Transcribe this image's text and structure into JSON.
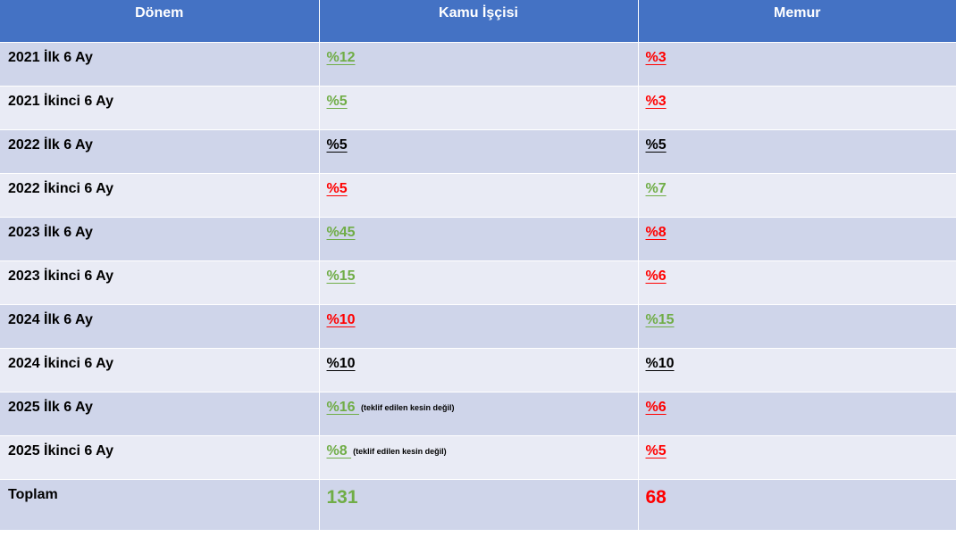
{
  "headers": [
    "Dönem",
    "Kamu İşçisi",
    "Memur"
  ],
  "rows": [
    {
      "period": "2021 İlk 6 Ay",
      "kamu": "%12",
      "kamu_color": "green",
      "kamu_note": "",
      "memur": "%3",
      "memur_color": "red"
    },
    {
      "period": "2021 İkinci 6 Ay",
      "kamu": "%5",
      "kamu_color": "green",
      "kamu_note": "",
      "memur": "%3",
      "memur_color": "red"
    },
    {
      "period": "2022 İlk 6 Ay",
      "kamu": "%5",
      "kamu_color": "black",
      "kamu_note": "",
      "memur": "%5",
      "memur_color": "black"
    },
    {
      "period": "2022 İkinci 6 Ay",
      "kamu": "%5",
      "kamu_color": "red",
      "kamu_note": "",
      "memur": "%7",
      "memur_color": "green"
    },
    {
      "period": "2023 İlk 6 Ay",
      "kamu": "%45",
      "kamu_color": "green",
      "kamu_note": "",
      "memur": "%8",
      "memur_color": "red"
    },
    {
      "period": "2023 İkinci 6 Ay",
      "kamu": "%15",
      "kamu_color": "green",
      "kamu_note": "",
      "memur": "%6",
      "memur_color": "red"
    },
    {
      "period": "2024 İlk 6 Ay",
      "kamu": "%10",
      "kamu_color": "red",
      "kamu_note": "",
      "memur": "%15",
      "memur_color": "green"
    },
    {
      "period": "2024 İkinci 6 Ay",
      "kamu": "%10",
      "kamu_color": "black",
      "kamu_note": "",
      "memur": "%10",
      "memur_color": "black"
    },
    {
      "period": "2025 İlk 6 Ay",
      "kamu": "%16 ",
      "kamu_color": "green",
      "kamu_note": "(teklif edilen kesin değil)",
      "memur": "%6",
      "memur_color": "red"
    },
    {
      "period": "2025 İkinci 6 Ay",
      "kamu": "%8 ",
      "kamu_color": "green",
      "kamu_note": "(teklif edilen kesin değil)",
      "memur": "%5",
      "memur_color": "red"
    }
  ],
  "total": {
    "label": "Toplam",
    "kamu": "131",
    "kamu_color": "green",
    "memur": "68",
    "memur_color": "red"
  },
  "colors": {
    "header_bg": "#4472c4",
    "row_odd": "#cfd5ea",
    "row_even": "#e9ebf5",
    "green": "#70ad47",
    "red": "#ff0000",
    "black": "#000000"
  }
}
